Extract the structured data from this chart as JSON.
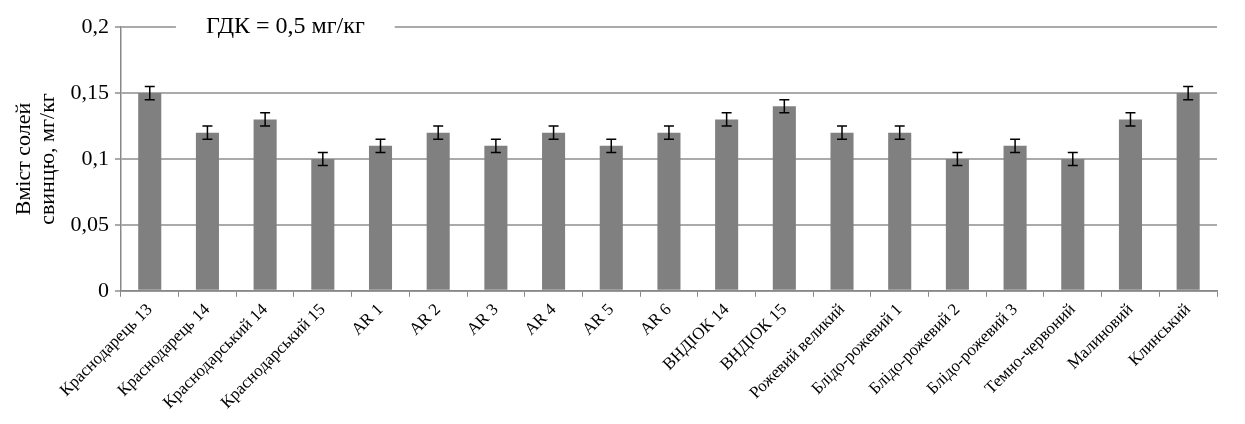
{
  "chart_data": {
    "type": "bar",
    "ylabel": "Вміст солей свинцю, мг/кг",
    "categories": [
      "Краснодарець 13",
      "Краснодарець 14",
      "Краснодарський 14",
      "Краснодарський 15",
      "AR 1",
      "AR 2",
      "AR 3",
      "AR 4",
      "AR 5",
      "AR 6",
      "ВНДІОК 14",
      "ВНДІОК 15",
      "Рожевий великий",
      "Блідо-рожевий 1",
      "Блідо-рожевий 2",
      "Блідо-рожевий 3",
      "Темно-червоний",
      "Малиновий",
      "Клинський"
    ],
    "values": [
      0.15,
      0.12,
      0.13,
      0.1,
      0.11,
      0.12,
      0.11,
      0.12,
      0.11,
      0.12,
      0.13,
      0.14,
      0.12,
      0.12,
      0.1,
      0.11,
      0.1,
      0.13,
      0.15
    ],
    "errors": [
      0.005,
      0.005,
      0.005,
      0.005,
      0.005,
      0.005,
      0.005,
      0.005,
      0.005,
      0.005,
      0.005,
      0.005,
      0.005,
      0.005,
      0.005,
      0.005,
      0.005,
      0.005,
      0.005
    ],
    "color": "#808080",
    "ylim": [
      0,
      0.2
    ],
    "yticks": [
      {
        "value": 0,
        "label": "0"
      },
      {
        "value": 0.05,
        "label": "0,05"
      },
      {
        "value": 0.1,
        "label": "0,1"
      },
      {
        "value": 0.15,
        "label": "0,15"
      },
      {
        "value": 0.2,
        "label": "0,2"
      }
    ],
    "annotations": [
      "ГДК = 0,5 мг/кг"
    ],
    "grid": "y",
    "legend": false
  }
}
